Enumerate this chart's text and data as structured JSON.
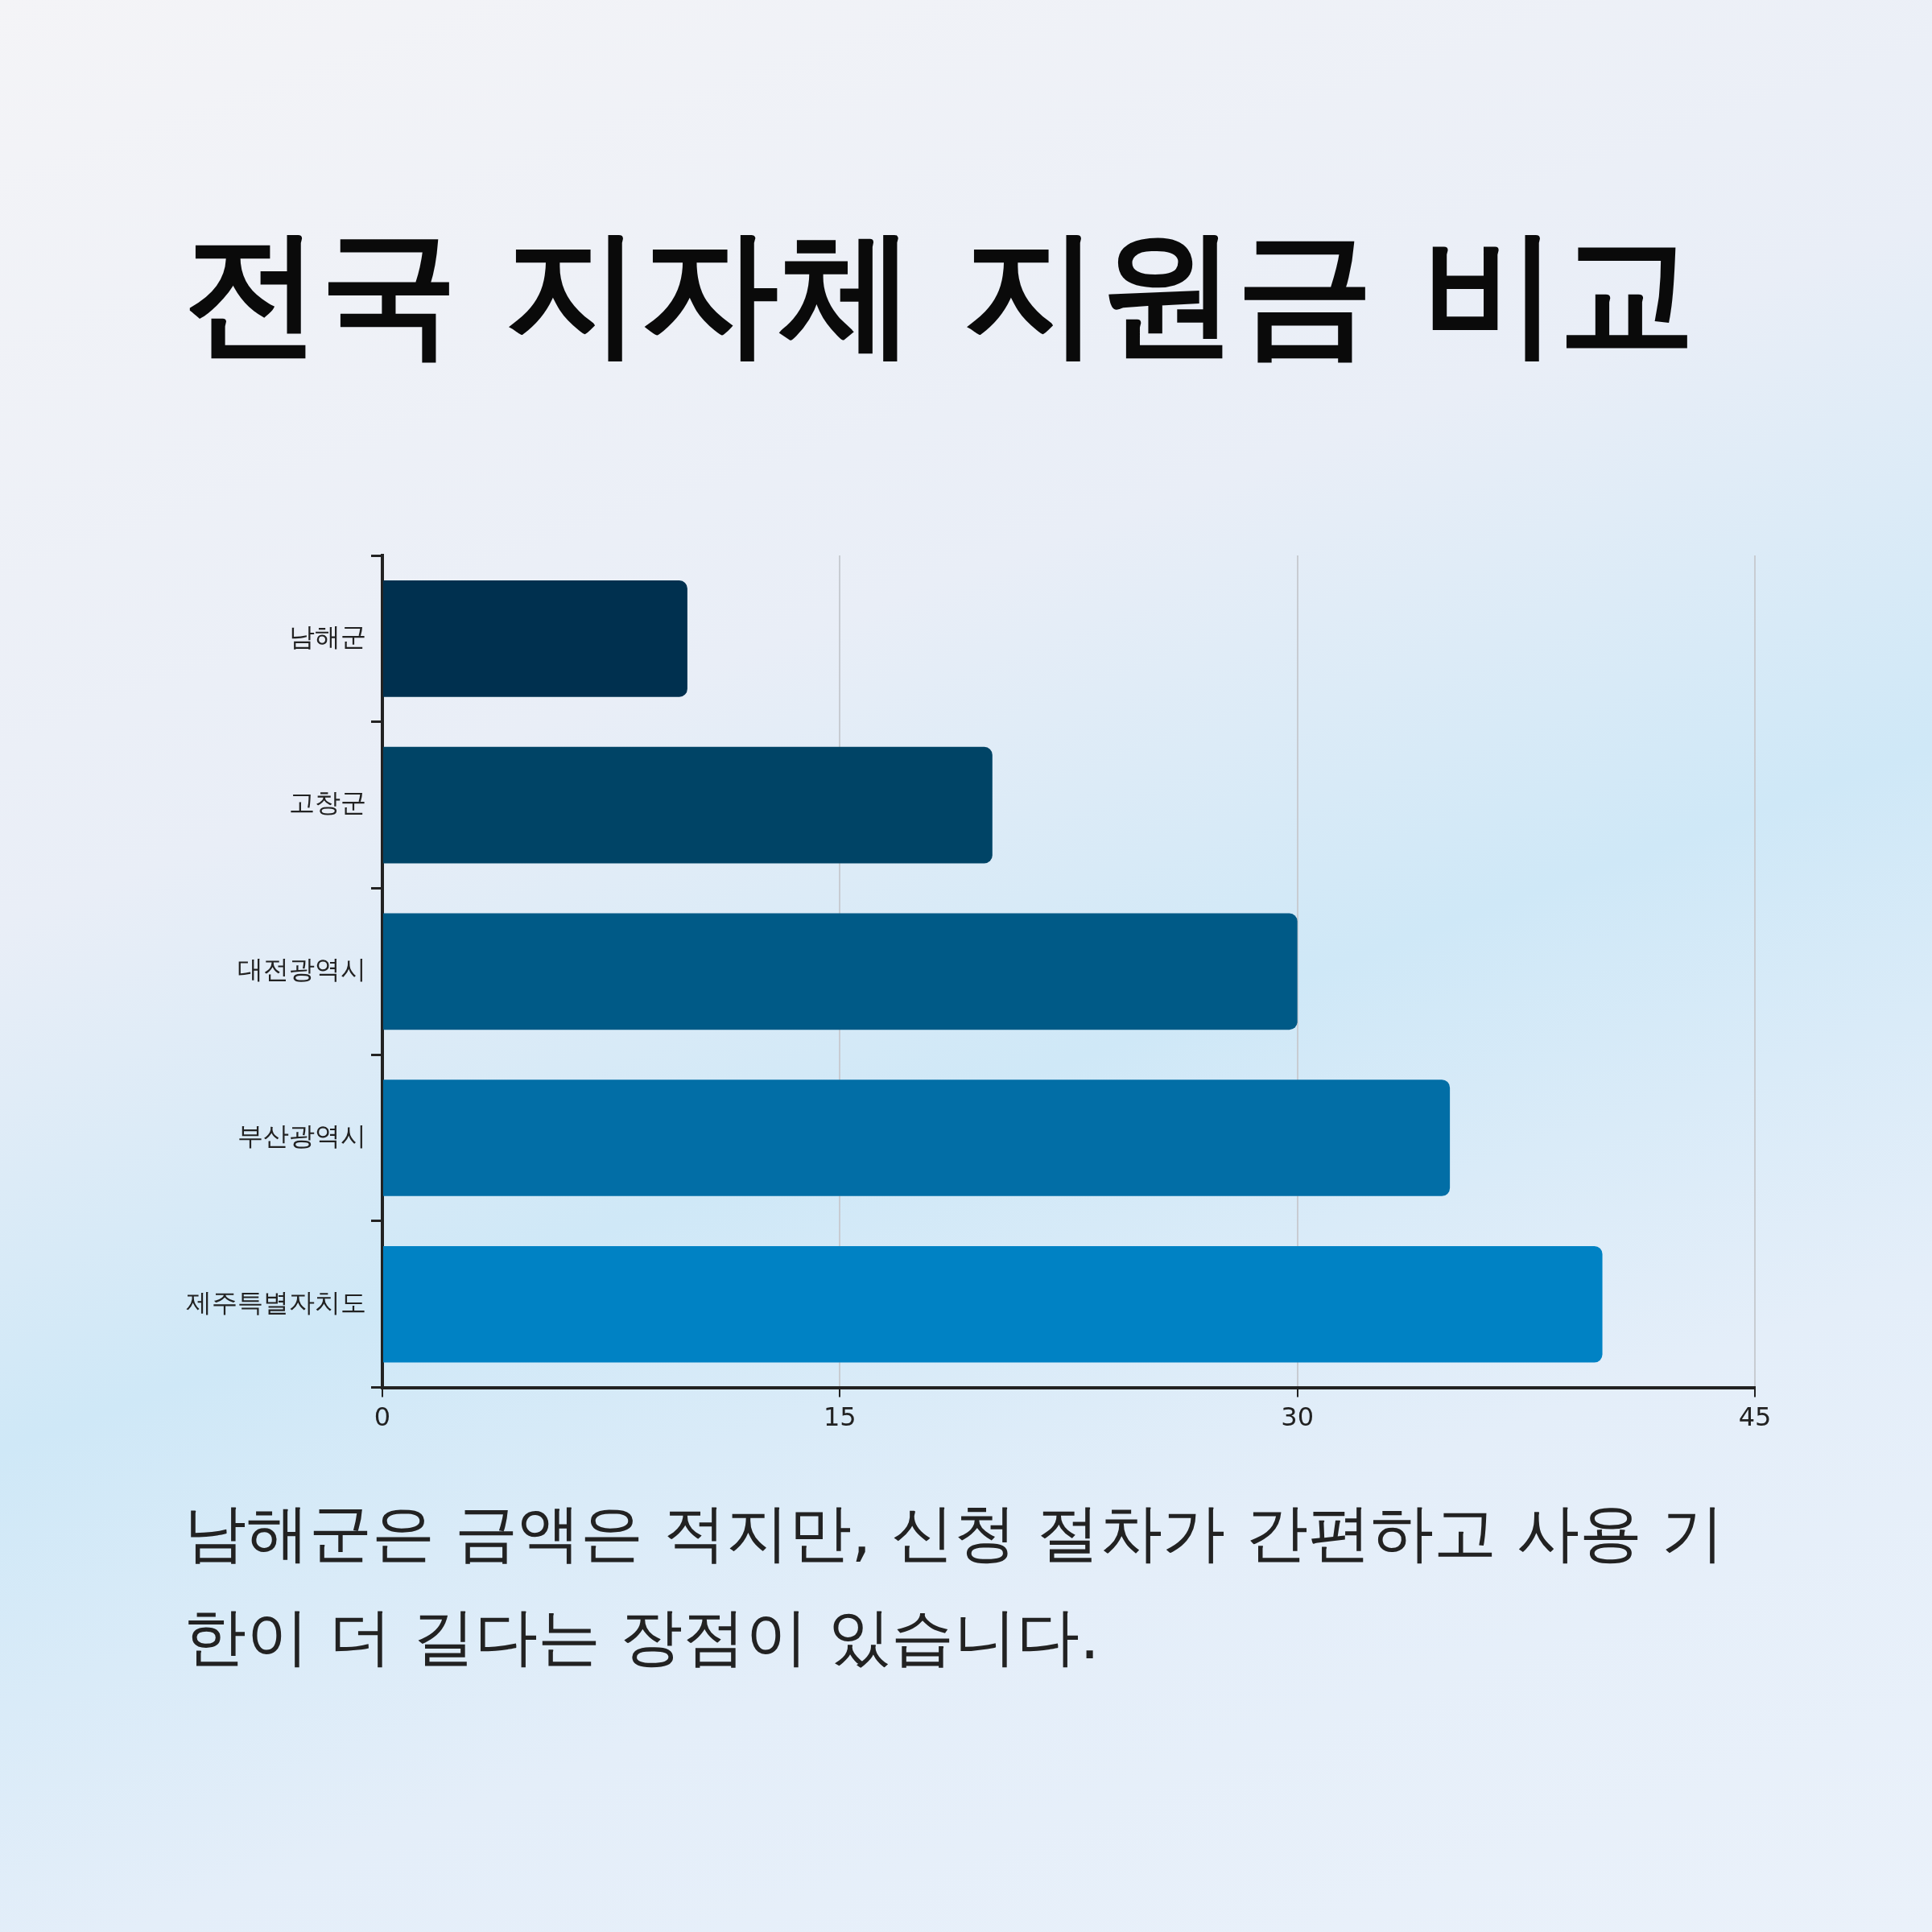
{
  "chart_data": {
    "type": "bar",
    "orientation": "horizontal",
    "title": "전국 지자체 지원금 비교",
    "categories": [
      "남해군",
      "고창군",
      "대전광역시",
      "부산광역시",
      "제주특별자치도"
    ],
    "values": [
      10,
      20,
      30,
      35,
      40
    ],
    "colors": [
      "#00304f",
      "#004466",
      "#005a87",
      "#026ea6",
      "#0082c4"
    ],
    "xlim": [
      0,
      45
    ],
    "xticks": [
      0,
      15,
      30,
      45
    ],
    "grid": "x",
    "annotations": [
      "남해군은 금액은 적지만, 신청 절차가 간편하고 사용 기한이 더 길다는 장점이 있습니다."
    ]
  }
}
